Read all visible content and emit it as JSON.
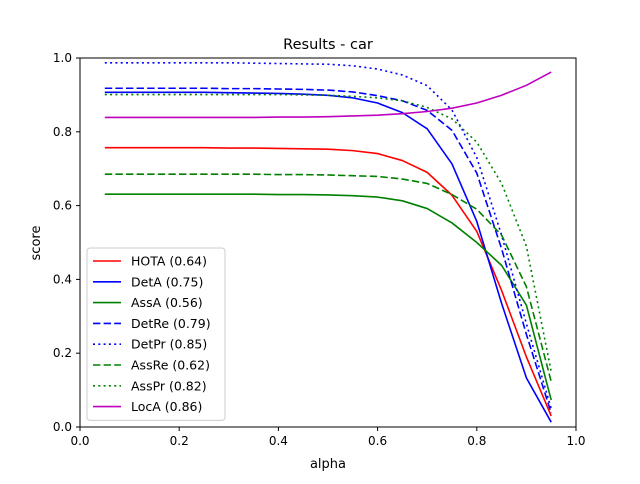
{
  "chart_data": {
    "type": "line",
    "title": "Results - car",
    "xlabel": "alpha",
    "ylabel": "score",
    "xlim": [
      0.0,
      1.0
    ],
    "ylim": [
      0.0,
      1.0
    ],
    "xticks": [
      "0.0",
      "0.2",
      "0.4",
      "0.6",
      "0.8",
      "1.0"
    ],
    "yticks": [
      "0.0",
      "0.2",
      "0.4",
      "0.6",
      "0.8",
      "1.0"
    ],
    "grid": false,
    "legend_position": "lower-left",
    "x": [
      0.05,
      0.1,
      0.15,
      0.2,
      0.25,
      0.3,
      0.35,
      0.4,
      0.45,
      0.5,
      0.55,
      0.6,
      0.65,
      0.7,
      0.75,
      0.8,
      0.85,
      0.9,
      0.95
    ],
    "series": [
      {
        "name": "HOTA (0.64)",
        "color": "#ff0000",
        "dash": "solid",
        "values": [
          0.757,
          0.757,
          0.757,
          0.757,
          0.757,
          0.756,
          0.756,
          0.755,
          0.754,
          0.753,
          0.749,
          0.741,
          0.722,
          0.69,
          0.628,
          0.53,
          0.37,
          0.19,
          0.03
        ]
      },
      {
        "name": "DetA (0.75)",
        "color": "#0000ff",
        "dash": "solid",
        "values": [
          0.907,
          0.907,
          0.907,
          0.907,
          0.907,
          0.906,
          0.905,
          0.904,
          0.902,
          0.899,
          0.892,
          0.878,
          0.852,
          0.808,
          0.713,
          0.557,
          0.335,
          0.133,
          0.013
        ]
      },
      {
        "name": "AssA (0.56)",
        "color": "#008000",
        "dash": "solid",
        "values": [
          0.631,
          0.631,
          0.631,
          0.631,
          0.631,
          0.631,
          0.631,
          0.63,
          0.63,
          0.629,
          0.627,
          0.623,
          0.613,
          0.592,
          0.553,
          0.5,
          0.438,
          0.33,
          0.073
        ]
      },
      {
        "name": "DetRe (0.79)",
        "color": "#0000ff",
        "dash": "dashed",
        "values": [
          0.918,
          0.918,
          0.918,
          0.918,
          0.918,
          0.917,
          0.917,
          0.916,
          0.915,
          0.913,
          0.908,
          0.898,
          0.884,
          0.858,
          0.804,
          0.688,
          0.483,
          0.251,
          0.038
        ]
      },
      {
        "name": "DetPr (0.85)",
        "color": "#0000ff",
        "dash": "dotted",
        "values": [
          0.987,
          0.987,
          0.987,
          0.987,
          0.987,
          0.987,
          0.986,
          0.985,
          0.984,
          0.983,
          0.979,
          0.97,
          0.954,
          0.925,
          0.859,
          0.73,
          0.52,
          0.28,
          0.05
        ]
      },
      {
        "name": "AssRe (0.62)",
        "color": "#008000",
        "dash": "dashed",
        "values": [
          0.685,
          0.685,
          0.685,
          0.685,
          0.685,
          0.685,
          0.685,
          0.684,
          0.684,
          0.683,
          0.681,
          0.679,
          0.672,
          0.66,
          0.63,
          0.59,
          0.52,
          0.38,
          0.123
        ]
      },
      {
        "name": "AssPr (0.82)",
        "color": "#008000",
        "dash": "dotted",
        "values": [
          0.901,
          0.901,
          0.901,
          0.901,
          0.901,
          0.901,
          0.901,
          0.901,
          0.9,
          0.899,
          0.896,
          0.892,
          0.884,
          0.866,
          0.835,
          0.772,
          0.66,
          0.49,
          0.15
        ]
      },
      {
        "name": "LocA (0.86)",
        "color": "#bf00bf",
        "dash": "solid",
        "values": [
          0.839,
          0.839,
          0.839,
          0.839,
          0.839,
          0.839,
          0.839,
          0.84,
          0.84,
          0.841,
          0.843,
          0.845,
          0.849,
          0.855,
          0.864,
          0.878,
          0.899,
          0.926,
          0.962
        ]
      }
    ]
  }
}
